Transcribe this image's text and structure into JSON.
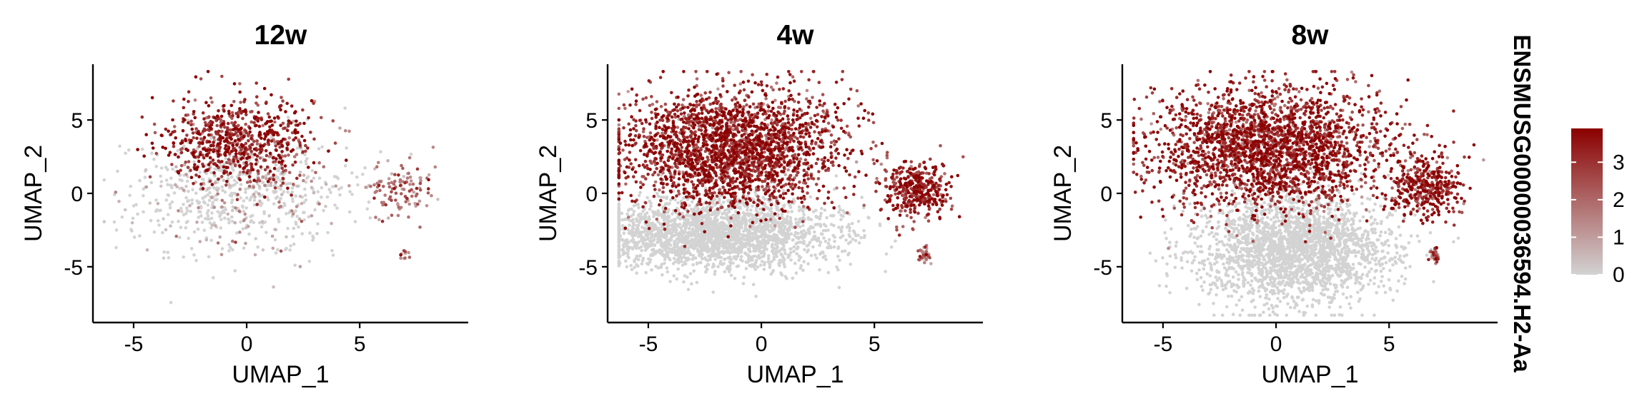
{
  "chart_data": {
    "type": "scatter",
    "layout": "three UMAP feature-plot panels side by side, shared color legend at right",
    "x_label": "UMAP_1",
    "y_label": "UMAP_2",
    "xlim": [
      -6.8,
      9.8
    ],
    "ylim": [
      -8.8,
      8.8
    ],
    "x_ticks": [
      -5,
      0,
      5
    ],
    "y_ticks": [
      -5,
      0,
      5
    ],
    "grid": false,
    "point_color_low": "#d3d3d3",
    "point_color_high": "#8b0000",
    "legend": {
      "title": "ENSMUSG00000036594.H2-Aa",
      "position": "right",
      "range": [
        0,
        3.9
      ],
      "ticks": [
        0,
        1,
        2,
        3
      ]
    },
    "panels": [
      {
        "title": "12w",
        "point_density": "sparse",
        "clusters": [
          {
            "role": "expressing",
            "center": [
              -0.3,
              3.6
            ],
            "spread": [
              1.6,
              1.5
            ],
            "expression": "high"
          },
          {
            "role": "background",
            "center": [
              -0.3,
              0.0
            ],
            "spread": [
              2.4,
              1.9
            ],
            "expression": "low"
          },
          {
            "role": "island",
            "center": [
              6.8,
              0.3
            ],
            "spread": [
              0.6,
              0.9
            ],
            "expression": "medium"
          },
          {
            "role": "satellite",
            "center": [
              7.0,
              -4.2
            ],
            "spread": [
              0.12,
              0.25
            ],
            "expression": "medium"
          }
        ]
      },
      {
        "title": "4w",
        "point_density": "dense",
        "clusters": [
          {
            "role": "expressing",
            "center": [
              -1.3,
              3.0
            ],
            "spread": [
              2.4,
              2.0
            ],
            "expression": "high"
          },
          {
            "role": "background",
            "center": [
              -2.0,
              -2.8
            ],
            "spread": [
              2.6,
              1.2
            ],
            "expression": "none"
          },
          {
            "role": "island",
            "center": [
              6.8,
              0.2
            ],
            "spread": [
              0.8,
              1.0
            ],
            "expression": "high"
          },
          {
            "role": "satellite",
            "center": [
              7.2,
              -4.2
            ],
            "spread": [
              0.12,
              0.25
            ],
            "expression": "medium"
          }
        ]
      },
      {
        "title": "8w",
        "point_density": "dense",
        "clusters": [
          {
            "role": "expressing",
            "center": [
              -0.3,
              3.0
            ],
            "spread": [
              2.6,
              2.0
            ],
            "expression": "high"
          },
          {
            "role": "background",
            "center": [
              0.8,
              -3.8
            ],
            "spread": [
              2.1,
              1.8
            ],
            "expression": "none"
          },
          {
            "role": "island",
            "center": [
              6.6,
              0.4
            ],
            "spread": [
              0.8,
              1.0
            ],
            "expression": "high"
          },
          {
            "role": "satellite",
            "center": [
              7.0,
              -4.2
            ],
            "spread": [
              0.12,
              0.25
            ],
            "expression": "medium"
          }
        ]
      }
    ]
  }
}
